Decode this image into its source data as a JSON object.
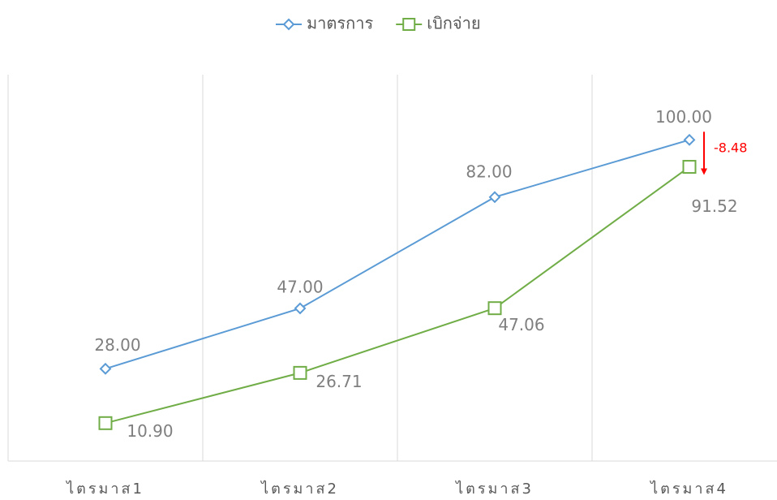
{
  "chart_data": {
    "type": "line",
    "categories": [
      "ไตรมาส1",
      "ไตรมาส2",
      "ไตรมาส3",
      "ไตรมาส4"
    ],
    "series": [
      {
        "name": "มาตรการ",
        "color": "#5b9bd5",
        "marker": "diamond",
        "values": [
          28,
          47,
          82,
          100
        ],
        "value_labels": [
          "28.00",
          "47.00",
          "82.00",
          "100.00"
        ]
      },
      {
        "name": "เบิกจ่าย",
        "color": "#70ad47",
        "marker": "square",
        "values": [
          10.9,
          26.71,
          47.06,
          91.52
        ],
        "value_labels": [
          "10.90",
          "26.71",
          "47.06",
          "91.52"
        ]
      }
    ],
    "ylim": [
      0,
      120
    ],
    "grid": true,
    "legend": "top",
    "annotations": [
      {
        "text": "-8.48",
        "color": "#ff0000"
      }
    ]
  }
}
